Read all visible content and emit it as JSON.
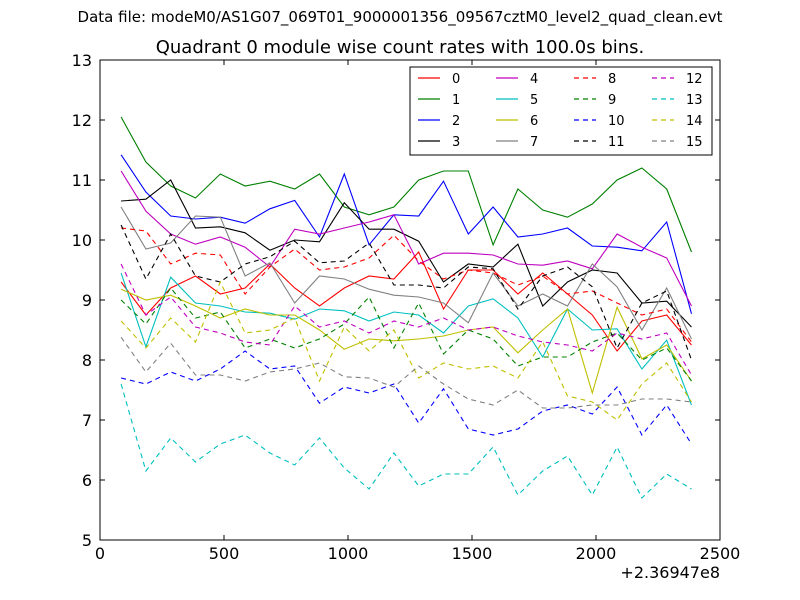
{
  "header": {
    "data_file": "Data file: modeM0/AS1G07_069T01_9000001356_09567cztM0_level2_quad_clean.evt",
    "plot_title": "Quadrant 0 module wise count rates with 100.0s bins."
  },
  "chart_data": {
    "type": "line",
    "title": "Quadrant 0 module wise count rates with 100.0s bins.",
    "xlabel": "",
    "ylabel": "",
    "x_offset_label": "+2.36947e8",
    "xlim": [
      0,
      2500
    ],
    "ylim": [
      5,
      13
    ],
    "x_ticks": [
      0,
      500,
      1000,
      1500,
      2000,
      2500
    ],
    "y_ticks": [
      5,
      6,
      7,
      8,
      9,
      10,
      11,
      12,
      13
    ],
    "grid": false,
    "legend_placement": "top-right",
    "x": [
      85,
      185,
      285,
      385,
      485,
      585,
      685,
      785,
      885,
      985,
      1085,
      1185,
      1285,
      1385,
      1485,
      1585,
      1685,
      1785,
      1885,
      1985,
      2085,
      2185,
      2285,
      2385
    ],
    "series": [
      {
        "name": "0",
        "color": "#ff0000",
        "dash": false,
        "values": [
          9.3,
          8.75,
          9.2,
          9.4,
          9.1,
          9.2,
          9.6,
          9.2,
          8.9,
          9.2,
          9.4,
          9.35,
          9.8,
          8.85,
          9.5,
          9.5,
          9.1,
          9.45,
          9.1,
          8.75,
          8.15,
          8.65,
          8.75,
          8.25
        ]
      },
      {
        "name": "1",
        "color": "#008000",
        "dash": false,
        "values": [
          12.05,
          11.3,
          10.9,
          10.7,
          11.1,
          10.9,
          10.98,
          10.85,
          11.1,
          10.55,
          10.42,
          10.55,
          11.0,
          11.15,
          11.15,
          9.92,
          10.85,
          10.5,
          10.38,
          10.6,
          11.0,
          11.2,
          10.85,
          9.8
        ]
      },
      {
        "name": "2",
        "color": "#0000ff",
        "dash": false,
        "values": [
          11.42,
          10.8,
          10.4,
          10.35,
          10.38,
          10.28,
          10.52,
          10.66,
          10.05,
          11.1,
          9.92,
          10.42,
          10.4,
          10.98,
          10.1,
          10.55,
          10.05,
          10.1,
          10.2,
          9.9,
          9.88,
          9.82,
          10.3,
          8.77
        ]
      },
      {
        "name": "3",
        "color": "#000000",
        "dash": false,
        "values": [
          10.65,
          10.68,
          11.0,
          10.2,
          10.22,
          10.12,
          9.83,
          10.0,
          9.97,
          10.62,
          10.18,
          10.18,
          9.98,
          9.3,
          9.6,
          9.55,
          9.93,
          8.9,
          9.3,
          9.5,
          9.45,
          8.95,
          8.98,
          8.55
        ]
      },
      {
        "name": "4",
        "color": "#bf00bf",
        "dash": false,
        "values": [
          11.15,
          10.48,
          10.1,
          9.93,
          10.05,
          9.88,
          9.55,
          10.18,
          10.1,
          10.2,
          10.3,
          10.42,
          9.6,
          9.78,
          9.78,
          9.75,
          9.6,
          9.58,
          9.65,
          9.52,
          10.1,
          9.88,
          9.7,
          8.9
        ]
      },
      {
        "name": "5",
        "color": "#00bfbf",
        "dash": false,
        "values": [
          9.45,
          8.22,
          9.38,
          8.95,
          8.9,
          8.8,
          8.78,
          8.68,
          8.85,
          8.82,
          8.65,
          8.8,
          8.75,
          8.45,
          8.9,
          9.02,
          8.7,
          8.05,
          8.85,
          8.5,
          8.52,
          7.85,
          8.33,
          7.25
        ]
      },
      {
        "name": "6",
        "color": "#bfbf00",
        "dash": false,
        "values": [
          9.18,
          9.0,
          9.08,
          8.9,
          8.7,
          8.85,
          8.75,
          8.75,
          8.5,
          8.18,
          8.35,
          8.32,
          8.35,
          8.4,
          8.5,
          8.55,
          8.12,
          8.5,
          8.85,
          7.45,
          8.88,
          8.02,
          8.25,
          7.65
        ]
      },
      {
        "name": "7",
        "color": "#808080",
        "dash": false,
        "values": [
          10.55,
          9.85,
          9.95,
          10.4,
          10.38,
          9.4,
          9.62,
          8.95,
          9.4,
          9.35,
          9.18,
          9.08,
          9.05,
          8.95,
          8.62,
          9.45,
          8.9,
          9.1,
          8.9,
          9.6,
          9.22,
          8.5,
          9.2,
          8.35
        ]
      },
      {
        "name": "8",
        "color": "#ff0000",
        "dash": true,
        "values": [
          10.2,
          10.15,
          9.6,
          9.78,
          9.75,
          9.1,
          9.55,
          9.85,
          9.5,
          9.55,
          9.7,
          10.08,
          9.65,
          9.35,
          9.5,
          9.45,
          9.25,
          9.4,
          9.1,
          9.15,
          8.95,
          8.75,
          8.85,
          8.3
        ]
      },
      {
        "name": "9",
        "color": "#008000",
        "dash": true,
        "values": [
          9.0,
          8.6,
          9.2,
          8.7,
          8.8,
          8.2,
          8.35,
          8.2,
          8.35,
          8.6,
          9.05,
          8.2,
          8.95,
          8.1,
          8.5,
          8.35,
          7.9,
          8.05,
          8.05,
          8.3,
          8.45,
          8.0,
          8.2,
          7.65
        ]
      },
      {
        "name": "10",
        "color": "#0000ff",
        "dash": true,
        "values": [
          7.7,
          7.6,
          7.8,
          7.65,
          7.85,
          8.15,
          7.85,
          7.9,
          7.28,
          7.55,
          7.45,
          7.6,
          6.95,
          7.52,
          6.85,
          6.75,
          6.85,
          7.15,
          7.25,
          7.1,
          7.55,
          6.75,
          7.25,
          6.6
        ]
      },
      {
        "name": "11",
        "color": "#000000",
        "dash": true,
        "values": [
          10.25,
          9.35,
          10.1,
          9.4,
          9.3,
          9.6,
          9.72,
          9.98,
          9.62,
          9.65,
          9.95,
          9.25,
          9.25,
          9.2,
          9.55,
          9.52,
          8.85,
          9.4,
          9.55,
          9.22,
          8.2,
          8.95,
          9.15,
          8.0
        ]
      },
      {
        "name": "12",
        "color": "#bf00bf",
        "dash": true,
        "values": [
          9.6,
          8.75,
          9.05,
          8.55,
          8.45,
          8.3,
          8.25,
          8.9,
          8.55,
          8.65,
          8.45,
          8.65,
          8.55,
          8.7,
          8.5,
          8.55,
          8.4,
          8.3,
          8.25,
          8.15,
          8.45,
          8.35,
          8.45,
          7.75
        ]
      },
      {
        "name": "13",
        "color": "#00bfbf",
        "dash": true,
        "values": [
          7.6,
          6.15,
          6.7,
          6.3,
          6.6,
          6.75,
          6.45,
          6.25,
          6.7,
          6.2,
          5.85,
          6.45,
          5.9,
          6.1,
          6.1,
          6.55,
          5.75,
          6.15,
          6.4,
          5.75,
          6.55,
          5.7,
          6.1,
          5.85
        ]
      },
      {
        "name": "14",
        "color": "#bfbf00",
        "dash": true,
        "values": [
          8.65,
          8.2,
          8.7,
          8.3,
          9.3,
          8.45,
          8.5,
          8.7,
          7.65,
          8.55,
          8.15,
          8.5,
          7.7,
          7.95,
          7.85,
          7.9,
          7.7,
          8.3,
          7.4,
          7.3,
          7.0,
          7.6,
          7.95,
          7.3
        ]
      },
      {
        "name": "15",
        "color": "#808080",
        "dash": true,
        "values": [
          8.38,
          7.8,
          8.28,
          7.75,
          7.75,
          7.65,
          7.8,
          7.85,
          7.95,
          7.72,
          7.7,
          7.55,
          7.9,
          7.6,
          7.35,
          7.25,
          7.5,
          7.2,
          7.2,
          7.25,
          7.25,
          7.35,
          7.35,
          7.3
        ]
      }
    ]
  }
}
